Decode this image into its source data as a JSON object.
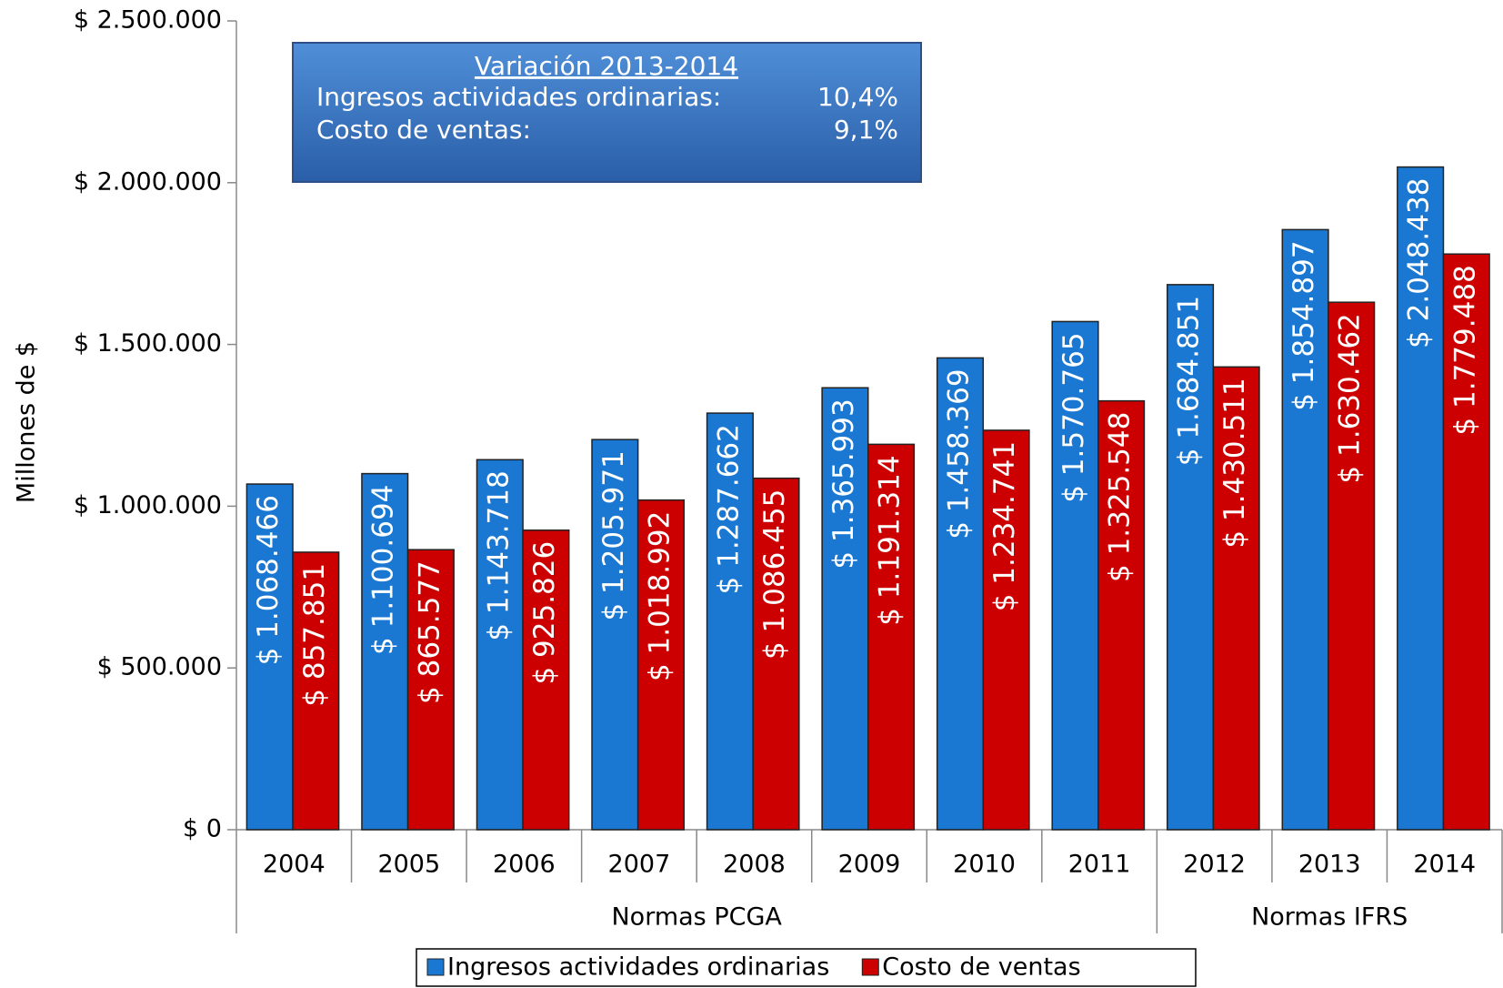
{
  "chart_data": {
    "type": "bar",
    "y_axis_label": "Millones de $",
    "categories": [
      "2004",
      "2005",
      "2006",
      "2007",
      "2008",
      "2009",
      "2010",
      "2011",
      "2012",
      "2013",
      "2014"
    ],
    "groups": [
      {
        "label": "Normas PCGA",
        "from": "2004",
        "to": "2011"
      },
      {
        "label": "Normas IFRS",
        "from": "2012",
        "to": "2014"
      }
    ],
    "series": [
      {
        "name": "Ingresos actividades ordinarias",
        "color": "#1a78d2",
        "values": [
          1068466,
          1100694,
          1143718,
          1205971,
          1287662,
          1365993,
          1458369,
          1570765,
          1684851,
          1854897,
          2048438
        ],
        "value_labels": [
          "$ 1.068.466",
          "$ 1.100.694",
          "$ 1.143.718",
          "$ 1.205.971",
          "$ 1.287.662",
          "$ 1.365.993",
          "$ 1.458.369",
          "$ 1.570.765",
          "$ 1.684.851",
          "$ 1.854.897",
          "$ 2.048.438"
        ]
      },
      {
        "name": "Costo de ventas",
        "color": "#cc0000",
        "values": [
          857851,
          865577,
          925826,
          1018992,
          1086455,
          1191314,
          1234741,
          1325548,
          1430511,
          1630462,
          1779488
        ],
        "value_labels": [
          "$ 857.851",
          "$ 865.577",
          "$ 925.826",
          "$ 1.018.992",
          "$ 1.086.455",
          "$ 1.191.314",
          "$ 1.234.741",
          "$ 1.325.548",
          "$ 1.430.511",
          "$ 1.630.462",
          "$ 1.779.488"
        ]
      }
    ],
    "ylim": [
      0,
      2500000
    ],
    "yticks": [
      {
        "value": 0,
        "label": "$ 0"
      },
      {
        "value": 500000,
        "label": "$ 500.000"
      },
      {
        "value": 1000000,
        "label": "$ 1.000.000"
      },
      {
        "value": 1500000,
        "label": "$ 1.500.000"
      },
      {
        "value": 2000000,
        "label": "$ 2.000.000"
      },
      {
        "value": 2500000,
        "label": "$ 2.500.000"
      }
    ],
    "grid": false,
    "annotation": {
      "title": "Variación 2013-2014",
      "rows": [
        {
          "label": "Ingresos actividades ordinarias:",
          "value": "10,4%"
        },
        {
          "label": "Costo de ventas:",
          "value": "9,1%"
        }
      ]
    }
  }
}
